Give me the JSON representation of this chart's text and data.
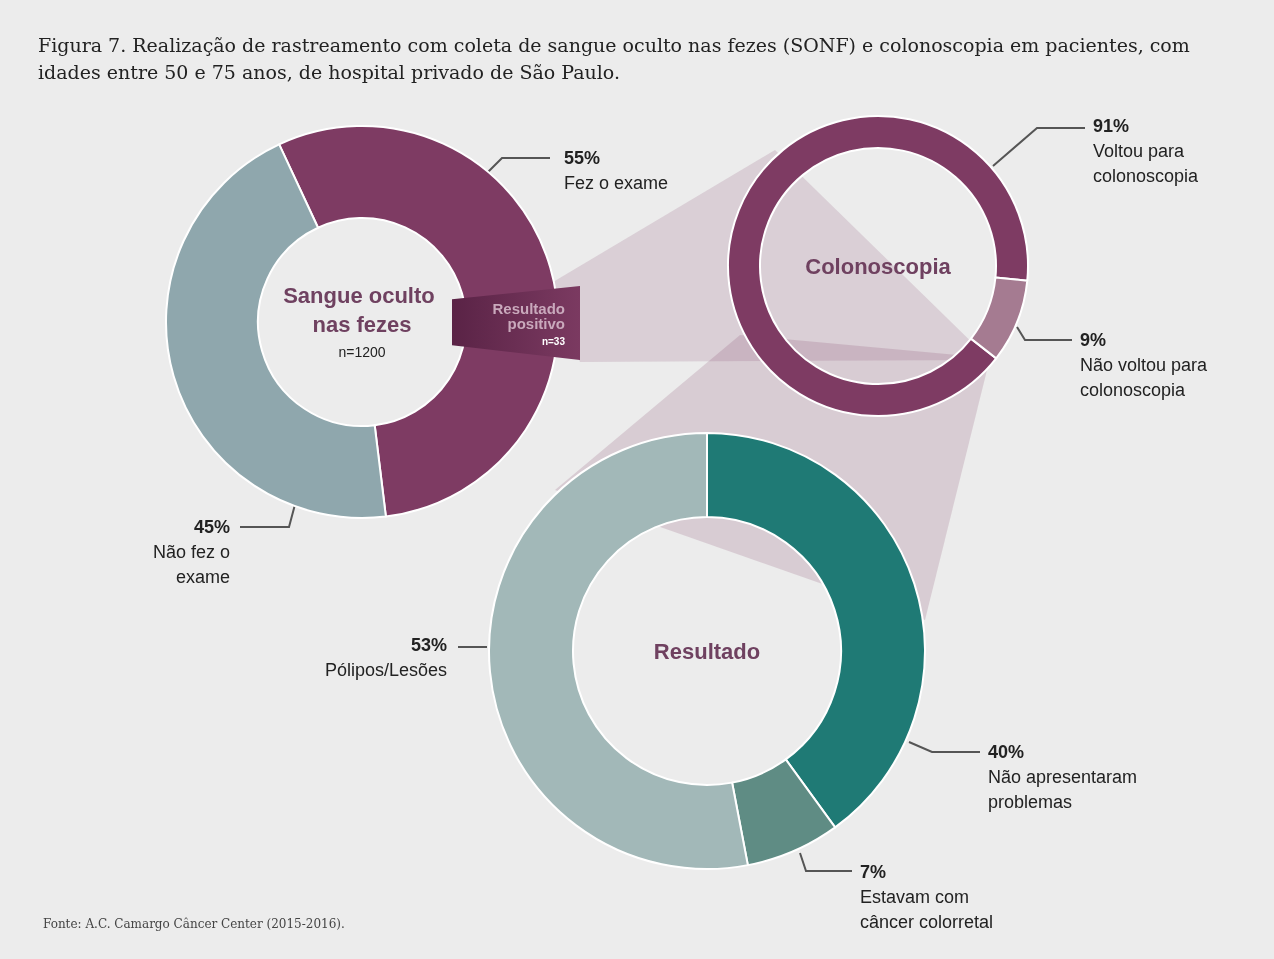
{
  "chart_data": [
    {
      "type": "donut",
      "title": "Figura 7. Realização de rastreamento com coleta de sangue oculto nas fezes (SONF) e colonoscopia em pacientes, com idades entre 50 e 75 anos, de hospital privado de São Paulo.",
      "subtitle": "Sangue oculto nas fezes",
      "categories": [
        "Fez o exame",
        "Não fez o exame"
      ],
      "values": [
        55,
        45
      ],
      "value_labels": [
        "55%",
        "45%"
      ],
      "colors": [
        "#7e3b63",
        "#8fa7ad"
      ],
      "annotations": [
        "n=1200",
        "Resultado positivo",
        "n=33",
        "Fonte: A.C. Camargo Câncer Center (2015-2016)."
      ],
      "legend": false
    },
    {
      "type": "donut",
      "title": "Colonoscopia",
      "categories": [
        "Voltou para colonoscopia",
        "Não voltou para colonoscopia"
      ],
      "values": [
        91,
        9
      ],
      "value_labels": [
        "91%",
        "9%"
      ],
      "colors": [
        "#7e3b63",
        "#a57b91"
      ],
      "legend": false
    },
    {
      "type": "donut",
      "title": "Resultado",
      "categories": [
        "Não apresentaram problemas",
        "Estavam com câncer colorretal",
        "Pólipos/Lesões"
      ],
      "values": [
        40,
        7,
        53
      ],
      "value_labels": [
        "40%",
        "7%",
        "53%"
      ],
      "colors": [
        "#1f7a75",
        "#5f8c84",
        " #a2b8b8"
      ],
      "legend": false
    }
  ]
}
